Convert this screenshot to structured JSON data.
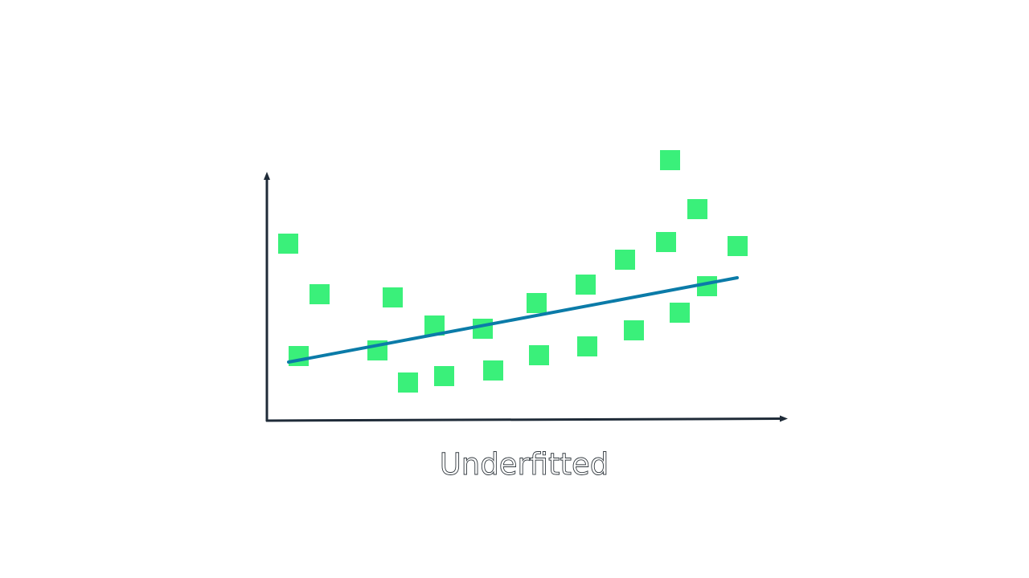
{
  "caption": "Underfitted"
}
